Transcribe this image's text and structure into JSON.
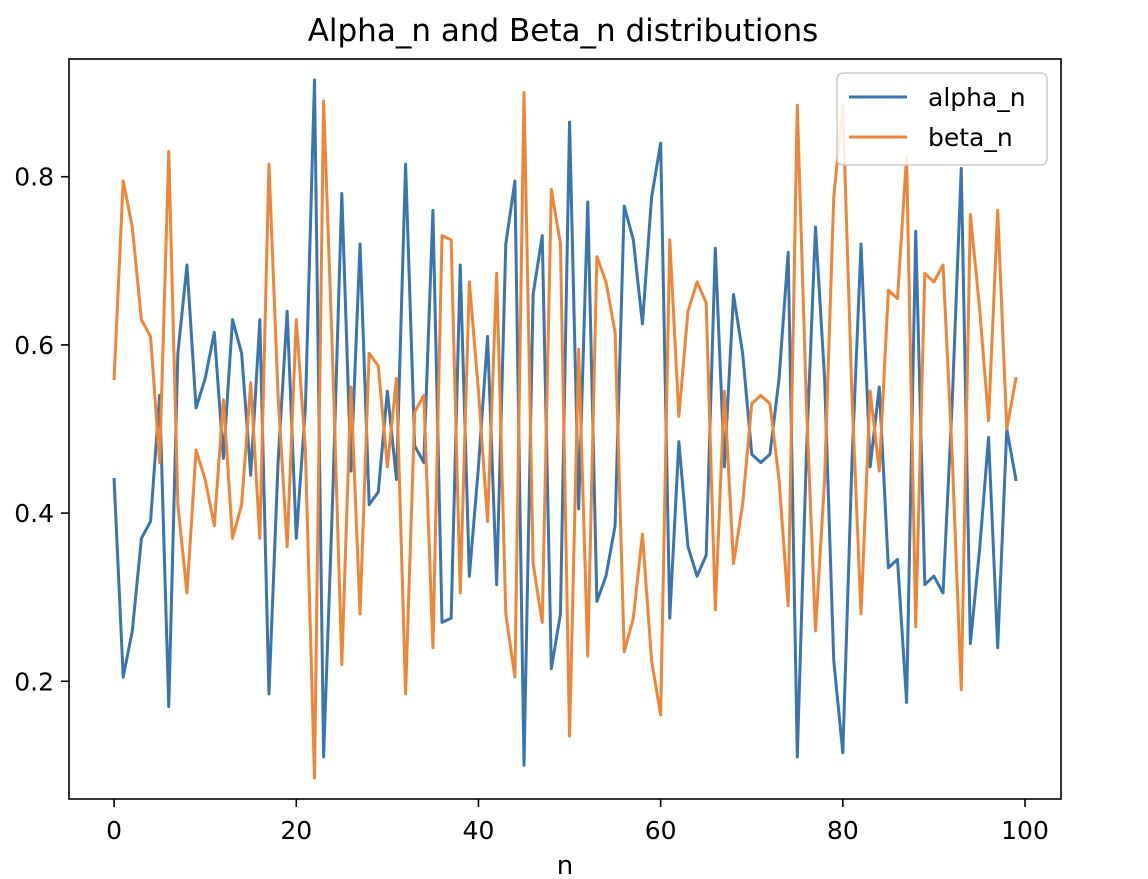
{
  "chart_data": {
    "type": "line",
    "title": "Alpha_n and Beta_n distributions",
    "xlabel": "n",
    "ylabel": "",
    "xlim": [
      -4.95,
      103.95
    ],
    "ylim": [
      0.06,
      0.94
    ],
    "xticks": [
      0,
      20,
      40,
      60,
      80,
      100
    ],
    "yticks": [
      0.2,
      0.4,
      0.6,
      0.8
    ],
    "grid": false,
    "legend_position": "upper right",
    "x": [
      0,
      1,
      2,
      3,
      4,
      5,
      6,
      7,
      8,
      9,
      10,
      11,
      12,
      13,
      14,
      15,
      16,
      17,
      18,
      19,
      20,
      21,
      22,
      23,
      24,
      25,
      26,
      27,
      28,
      29,
      30,
      31,
      32,
      33,
      34,
      35,
      36,
      37,
      38,
      39,
      40,
      41,
      42,
      43,
      44,
      45,
      46,
      47,
      48,
      49,
      50,
      51,
      52,
      53,
      54,
      55,
      56,
      57,
      58,
      59,
      60,
      61,
      62,
      63,
      64,
      65,
      66,
      67,
      68,
      69,
      70,
      71,
      72,
      73,
      74,
      75,
      76,
      77,
      78,
      79,
      80,
      81,
      82,
      83,
      84,
      85,
      86,
      87,
      88,
      89,
      90,
      91,
      92,
      93,
      94,
      95,
      96,
      97,
      98,
      99
    ],
    "series": [
      {
        "name": "alpha_n",
        "color": "#3a75af",
        "values": [
          0.44,
          0.205,
          0.26,
          0.37,
          0.39,
          0.54,
          0.17,
          0.59,
          0.695,
          0.525,
          0.56,
          0.615,
          0.465,
          0.63,
          0.59,
          0.445,
          0.63,
          0.185,
          0.46,
          0.64,
          0.37,
          0.525,
          0.915,
          0.11,
          0.42,
          0.78,
          0.45,
          0.72,
          0.41,
          0.425,
          0.545,
          0.44,
          0.815,
          0.48,
          0.46,
          0.76,
          0.27,
          0.275,
          0.695,
          0.325,
          0.455,
          0.61,
          0.315,
          0.72,
          0.795,
          0.1,
          0.66,
          0.73,
          0.215,
          0.28,
          0.865,
          0.405,
          0.77,
          0.295,
          0.325,
          0.385,
          0.765,
          0.725,
          0.625,
          0.775,
          0.84,
          0.275,
          0.485,
          0.36,
          0.325,
          0.35,
          0.715,
          0.455,
          0.66,
          0.59,
          0.47,
          0.46,
          0.47,
          0.56,
          0.71,
          0.11,
          0.47,
          0.74,
          0.56,
          0.225,
          0.115,
          0.46,
          0.72,
          0.455,
          0.55,
          0.335,
          0.345,
          0.175,
          0.735,
          0.315,
          0.325,
          0.305,
          0.53,
          0.81,
          0.245,
          0.355,
          0.49,
          0.24,
          0.5,
          0.44
        ]
      },
      {
        "name": "beta_n",
        "color": "#ef8637",
        "values": [
          0.56,
          0.795,
          0.74,
          0.63,
          0.61,
          0.46,
          0.83,
          0.41,
          0.305,
          0.475,
          0.44,
          0.385,
          0.535,
          0.37,
          0.41,
          0.555,
          0.37,
          0.815,
          0.54,
          0.36,
          0.63,
          0.475,
          0.085,
          0.89,
          0.58,
          0.22,
          0.55,
          0.28,
          0.59,
          0.575,
          0.455,
          0.56,
          0.185,
          0.52,
          0.54,
          0.24,
          0.73,
          0.725,
          0.305,
          0.675,
          0.545,
          0.39,
          0.685,
          0.28,
          0.205,
          0.9,
          0.34,
          0.27,
          0.785,
          0.72,
          0.135,
          0.595,
          0.23,
          0.705,
          0.675,
          0.615,
          0.235,
          0.275,
          0.375,
          0.225,
          0.16,
          0.725,
          0.515,
          0.64,
          0.675,
          0.65,
          0.285,
          0.545,
          0.34,
          0.41,
          0.53,
          0.54,
          0.53,
          0.44,
          0.29,
          0.885,
          0.53,
          0.26,
          0.44,
          0.775,
          0.885,
          0.54,
          0.28,
          0.545,
          0.45,
          0.665,
          0.655,
          0.825,
          0.265,
          0.685,
          0.675,
          0.695,
          0.47,
          0.19,
          0.755,
          0.645,
          0.51,
          0.76,
          0.5,
          0.56
        ]
      }
    ]
  }
}
